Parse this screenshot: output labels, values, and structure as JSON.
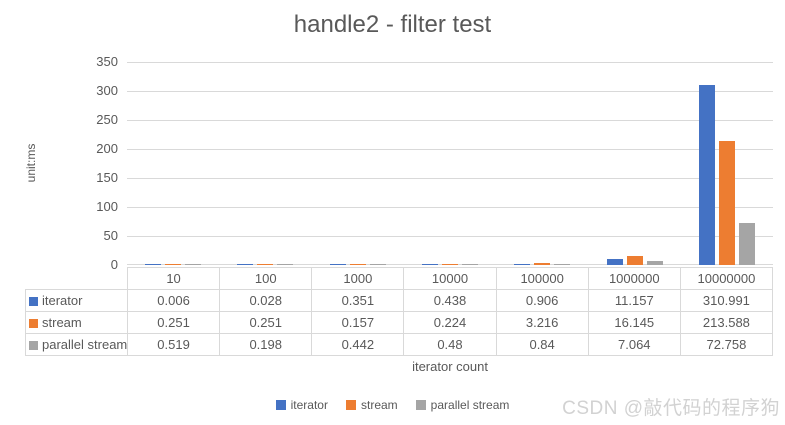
{
  "chart": {
    "title": "handle2 - filter test",
    "y_axis_label": "unit:ms",
    "x_axis_label": "iterator count",
    "watermark": "CSDN @敲代码的程序狗"
  },
  "chart_data": {
    "type": "bar",
    "title": "handle2 - filter test",
    "xlabel": "iterator count",
    "ylabel": "unit:ms",
    "categories": [
      "10",
      "100",
      "1000",
      "10000",
      "100000",
      "1000000",
      "10000000"
    ],
    "series": [
      {
        "name": "iterator",
        "color": "#4472C4",
        "values": [
          0.006,
          0.028,
          0.351,
          0.438,
          0.906,
          11.157,
          310.991
        ]
      },
      {
        "name": "stream",
        "color": "#ED7D31",
        "values": [
          0.251,
          0.251,
          0.157,
          0.224,
          3.216,
          16.145,
          213.588
        ]
      },
      {
        "name": "parallel stream",
        "color": "#A5A5A5",
        "values": [
          0.519,
          0.198,
          0.442,
          0.48,
          0.84,
          7.064,
          72.758
        ]
      }
    ],
    "ylim": [
      0,
      350
    ],
    "ytick_step": 50,
    "grid": true,
    "legend_position": "bottom",
    "data_table": true
  },
  "colors": {
    "text": "#595959",
    "grid": "#D9D9D9",
    "watermark": "#D2D2D2"
  }
}
